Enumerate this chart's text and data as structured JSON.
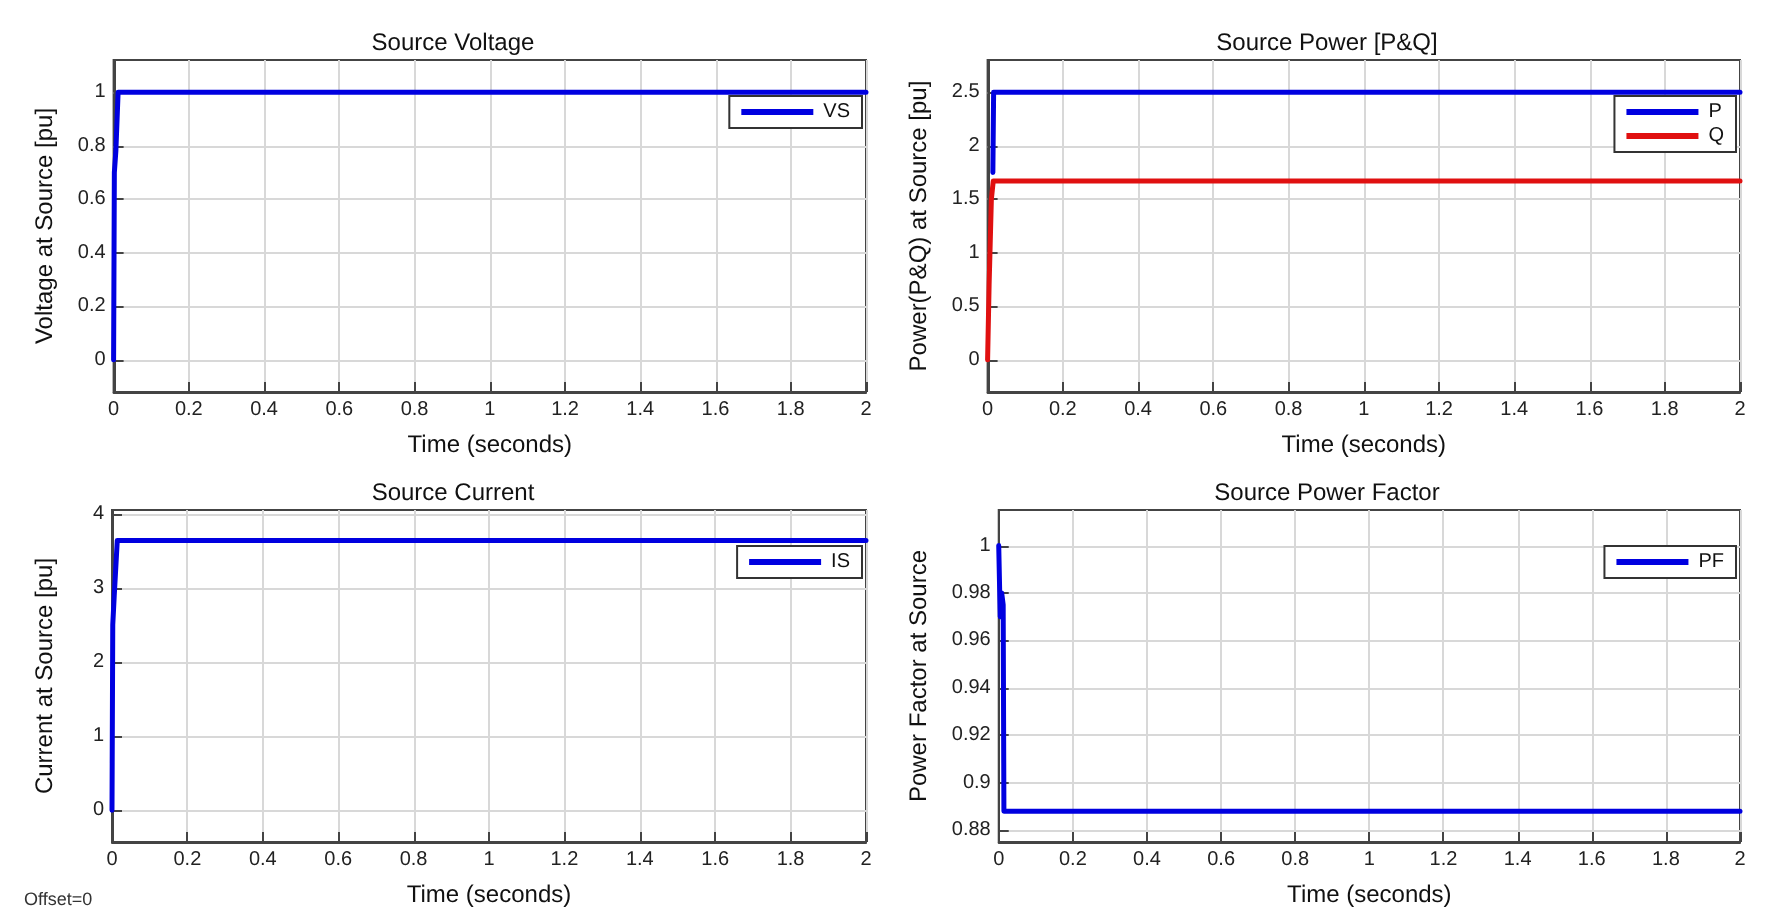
{
  "chart_data": [
    {
      "type": "line",
      "title": "Source Voltage",
      "xlabel": "Time (seconds)",
      "ylabel": "Voltage at Source [pu]",
      "x": [
        0,
        0.002,
        0.006,
        0.012,
        2
      ],
      "series": [
        {
          "name": "VS",
          "color": "#0000e0",
          "values": [
            0,
            0.7,
            0.78,
            1,
            1
          ]
        }
      ],
      "xlim": [
        0,
        2
      ],
      "xticks": [
        0,
        0.2,
        0.4,
        0.6,
        0.8,
        1,
        1.2,
        1.4,
        1.6,
        1.8,
        2
      ],
      "ylim": [
        -0.12,
        1.12
      ],
      "yticks": [
        0,
        0.2,
        0.4,
        0.6,
        0.8,
        1
      ],
      "grid": true,
      "legend": "top right",
      "marker": "none",
      "line_style": "solid"
    },
    {
      "type": "line",
      "title": "Source Power [P&Q]",
      "xlabel": "Time (seconds)",
      "ylabel": "Power(P&Q) at Source [pu]",
      "x": [
        0,
        0.004,
        0.01,
        0.015,
        2
      ],
      "series": [
        {
          "name": "P",
          "color": "#0000e0",
          "x": [
            0.014,
            0.016,
            2
          ],
          "values": [
            1.75,
            2.5,
            2.5
          ]
        },
        {
          "name": "Q",
          "color": "#e01010",
          "values": [
            0,
            0.7,
            1.5,
            1.67,
            1.67
          ]
        }
      ],
      "xlim": [
        0,
        2
      ],
      "xticks": [
        0,
        0.2,
        0.4,
        0.6,
        0.8,
        1,
        1.2,
        1.4,
        1.6,
        1.8,
        2
      ],
      "ylim": [
        -0.3,
        2.8
      ],
      "yticks": [
        0,
        0.5,
        1,
        1.5,
        2,
        2.5
      ],
      "grid": true,
      "legend": "top right",
      "marker": "none",
      "line_style": "solid"
    },
    {
      "type": "line",
      "title": "Source Current",
      "xlabel": "Time (seconds)",
      "ylabel": "Current at Source [pu]",
      "x": [
        0,
        0.002,
        0.006,
        0.014,
        2
      ],
      "series": [
        {
          "name": "IS",
          "color": "#0000e0",
          "values": [
            0,
            2.5,
            2.9,
            3.64,
            3.64
          ]
        }
      ],
      "xlim": [
        0,
        2
      ],
      "xticks": [
        0,
        0.2,
        0.4,
        0.6,
        0.8,
        1,
        1.2,
        1.4,
        1.6,
        1.8,
        2
      ],
      "ylim": [
        -0.43,
        4.05
      ],
      "yticks": [
        0,
        1,
        2,
        3,
        4
      ],
      "grid": true,
      "legend": "top right",
      "marker": "none",
      "line_style": "solid",
      "annotations": [
        "Offset=0"
      ]
    },
    {
      "type": "line",
      "title": "Source Power Factor",
      "xlabel": "Time (seconds)",
      "ylabel": "Power Factor at Source",
      "x": [
        0,
        0.004,
        0.008,
        0.012,
        0.014,
        2
      ],
      "series": [
        {
          "name": "PF",
          "color": "#0000e0",
          "values": [
            1,
            0.97,
            0.98,
            0.975,
            0.888,
            0.888
          ]
        }
      ],
      "xlim": [
        0,
        2
      ],
      "xticks": [
        0,
        0.2,
        0.4,
        0.6,
        0.8,
        1,
        1.2,
        1.4,
        1.6,
        1.8,
        2
      ],
      "ylim": [
        0.875,
        1.015
      ],
      "yticks": [
        0.88,
        0.9,
        0.92,
        0.94,
        0.96,
        0.98,
        1
      ],
      "grid": true,
      "legend": "top right",
      "marker": "none",
      "line_style": "solid"
    }
  ]
}
